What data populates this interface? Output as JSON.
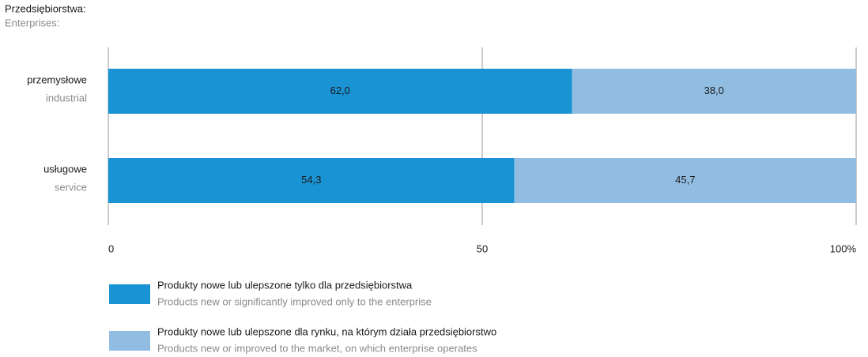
{
  "chart_data": {
    "type": "stacked_bar_horizontal",
    "axis_title": "Przedsiębiorstwa:",
    "axis_title_en": "Enterprises:",
    "categories": [
      "przemysłowe",
      "usługowe"
    ],
    "categories_en": [
      "industrial",
      "service"
    ],
    "series": [
      {
        "name": "Produkty nowe lub ulepszone tylko dla przedsiębiorstwa",
        "name_en": "Products new or significantly improved only to the enterprise",
        "color": "#1a93d4",
        "values": [
          62.0,
          54.3
        ],
        "value_labels": [
          "62,0",
          "54,3"
        ]
      },
      {
        "name": "Produkty nowe lub ulepszone dla rynku, na którym działa przedsiębiorstwo",
        "name_en": "Products new or improved to the market, on which enterprise operates",
        "color": "#92bde3",
        "values": [
          38.0,
          45.7
        ],
        "value_labels": [
          "38,0",
          "45,7"
        ]
      }
    ],
    "xlim": [
      0,
      100
    ],
    "xticks": [
      0,
      50,
      {
        "value": 100,
        "label": "100%"
      }
    ],
    "grid": true
  }
}
